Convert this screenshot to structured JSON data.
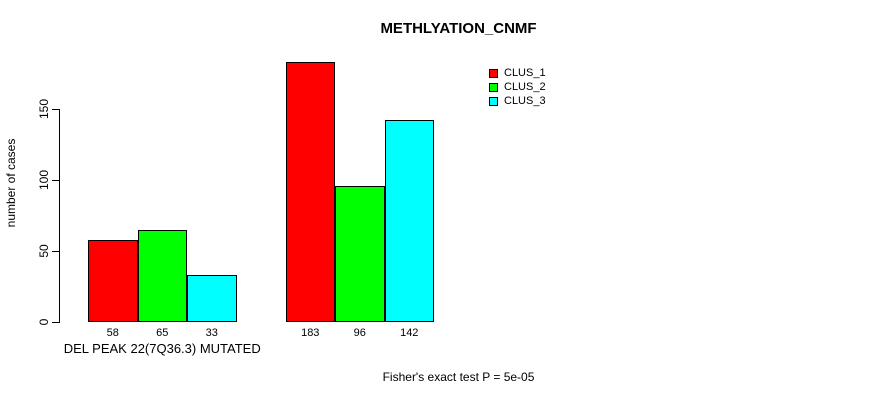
{
  "title": "METHLYATION_CNMF",
  "chart_data": {
    "type": "bar",
    "title": "METHLYATION_CNMF",
    "xlabel": "",
    "ylabel": "number of cases",
    "ylim": [
      0,
      150
    ],
    "yticks": [
      0,
      50,
      100,
      150
    ],
    "grid": false,
    "legend_position": "top-right",
    "categories": [
      "DEL PEAK 22(7Q36.3) MUTATED",
      ""
    ],
    "series": [
      {
        "name": "CLUS_1",
        "color": "#ff0000",
        "values": [
          58,
          183
        ]
      },
      {
        "name": "CLUS_2",
        "color": "#00ff00",
        "values": [
          65,
          96
        ]
      },
      {
        "name": "CLUS_3",
        "color": "#00ffff",
        "values": [
          33,
          142
        ]
      }
    ],
    "bar_value_labels": [
      [
        58,
        65,
        33
      ],
      [
        183,
        96,
        142
      ]
    ],
    "annotation": "Fisher's exact test P = 5e-05"
  }
}
